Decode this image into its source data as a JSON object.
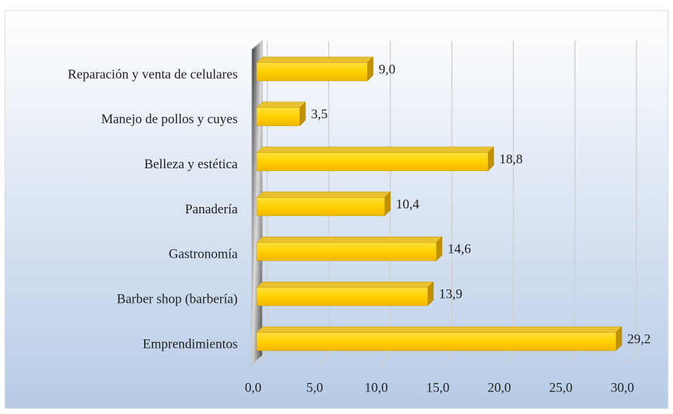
{
  "chart_data": {
    "type": "bar3d_horizontal",
    "categories": [
      "Reparación y venta de celulares",
      "Manejo de pollos y cuyes",
      "Belleza y estética",
      "Panadería",
      "Gastronomía",
      "Barber shop (barbería)",
      "Emprendimientos"
    ],
    "values": [
      9.0,
      3.5,
      18.8,
      10.4,
      14.6,
      13.9,
      29.2
    ],
    "value_labels": [
      "9,0",
      "3,5",
      "18,8",
      "10,4",
      "14,6",
      "13,9",
      "29,2"
    ],
    "color": "#ffd000",
    "xlim": [
      0,
      30
    ],
    "xticks": [
      {
        "value": 0,
        "label": "0,0"
      },
      {
        "value": 5,
        "label": "5,0"
      },
      {
        "value": 10,
        "label": "10,0"
      },
      {
        "value": 15,
        "label": "15,0"
      },
      {
        "value": 20,
        "label": "20,0"
      },
      {
        "value": 25,
        "label": "25,0"
      },
      {
        "value": 30,
        "label": "30,0"
      }
    ],
    "grid": true
  }
}
